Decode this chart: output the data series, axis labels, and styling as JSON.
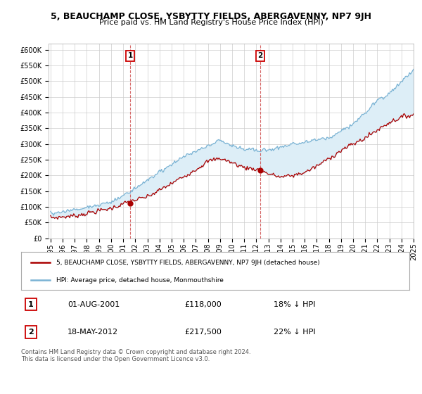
{
  "title": "5, BEAUCHAMP CLOSE, YSBYTTY FIELDS, ABERGAVENNY, NP7 9JH",
  "subtitle": "Price paid vs. HM Land Registry's House Price Index (HPI)",
  "hpi_color": "#7ab3d4",
  "hpi_fill_color": "#ddeef7",
  "price_color": "#aa0000",
  "marker1_price": 118000,
  "marker1_date_str": "01-AUG-2001",
  "marker1_pct": "18% ↓ HPI",
  "marker2_price": 217500,
  "marker2_date_str": "18-MAY-2012",
  "marker2_pct": "22% ↓ HPI",
  "ylim": [
    0,
    620000
  ],
  "yticks": [
    0,
    50000,
    100000,
    150000,
    200000,
    250000,
    300000,
    350000,
    400000,
    450000,
    500000,
    550000,
    600000
  ],
  "legend_line1": "5, BEAUCHAMP CLOSE, YSBYTTY FIELDS, ABERGAVENNY, NP7 9JH (detached house)",
  "legend_line2": "HPI: Average price, detached house, Monmouthshire",
  "footer": "Contains HM Land Registry data © Crown copyright and database right 2024.\nThis data is licensed under the Open Government Licence v3.0.",
  "background_color": "#ffffff",
  "grid_color": "#cccccc"
}
